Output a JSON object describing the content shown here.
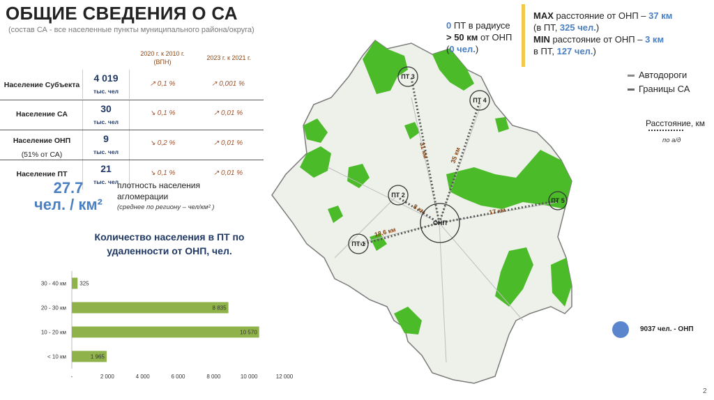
{
  "header": {
    "title": "ОБЩИЕ СВЕДЕНИЯ О СА",
    "subtitle": "(состав СА - все населенные пункты муниципального района/округа)"
  },
  "table": {
    "col1_head_l1": "2020 г. к 2010 г.",
    "col1_head_l2": "(ВПН)",
    "col2_head": "2023 г. к 2021 г.",
    "rows": [
      {
        "label": "Население Субъекта",
        "label2": "",
        "value": "4 019",
        "unit": "тыс. чел",
        "c1": "↗ 0,1 %",
        "c2": "↗ 0,001 %"
      },
      {
        "label": "Население СА",
        "label2": "",
        "value": "30",
        "unit": "тыс. чел",
        "c1": "↘ 0,1 %",
        "c2": "↗ 0,01 %"
      },
      {
        "label": "Население ОНП",
        "label2": "(51% от СА)",
        "value": "9",
        "unit": "тыс. чел",
        "c1": "↘ 0,2 %",
        "c2": "↗ 0,01 %"
      },
      {
        "label": "Население ПТ",
        "label2": "",
        "value": "21",
        "unit": "тыс. чел",
        "c1": "↘ 0,1 %",
        "c2": "↗ 0,01 %"
      }
    ]
  },
  "density": {
    "value": "27.7",
    "unit": "чел. / км²",
    "label_l1": "плотность населения",
    "label_l2": "агломерации",
    "note": "(среднее по региону –      чел/км² )"
  },
  "chart_title_l1": "Количество населения в ПТ по",
  "chart_title_l2": "удаленности от ОНП, чел.",
  "chart_data": {
    "type": "bar",
    "orientation": "horizontal",
    "categories": [
      "30 - 40 км",
      "20 - 30 км",
      "10 - 20 км",
      "< 10 км"
    ],
    "values": [
      325,
      8835,
      10570,
      1965
    ],
    "value_labels": [
      "325",
      "8 835",
      "10 570",
      "1 965"
    ],
    "xlim": [
      0,
      12000
    ],
    "xticks": [
      "-",
      "2 000",
      "4 000",
      "6 000",
      "8 000",
      "10 000",
      "12 000"
    ],
    "bar_color": "#8fb34a"
  },
  "map": {
    "points": [
      {
        "label": "ПТ 3"
      },
      {
        "label": "ПТ 4"
      },
      {
        "label": "ПТ 2"
      },
      {
        "label": "ПТ 5"
      },
      {
        "label": "ПТ 1"
      },
      {
        "label": "ОНП"
      }
    ],
    "distances": [
      "31 км",
      "35 км",
      "8 км",
      "17 км",
      "18,6 км"
    ],
    "forest_color": "#4cbb2a"
  },
  "info_left": {
    "count": "0",
    "l1_rest": " ПТ в радиусе",
    "l2_bold": "> 50 км",
    "l2_rest": " от ОНП",
    "l3_open": "(",
    "l3_blue": "0 чел.",
    "l3_close": ")"
  },
  "info_right": {
    "max_bold": "MAX",
    "max_text": " расстояние от ОНП – ",
    "max_value": "37 км",
    "max_pt_open": "(в ПТ, ",
    "max_people": "325 чел.",
    "max_pt_close": ")",
    "min_bold": "MIN",
    "min_text": " расстояние от ОНП – ",
    "min_value": "3 км",
    "min_pt_open": "в ПТ, ",
    "min_people": "127 чел.",
    "min_pt_close": ")"
  },
  "legend": {
    "roads": "Автодороги",
    "borders": "Границы СА",
    "distance": "Расстояние, км",
    "distance_note": "по а/д"
  },
  "onp_legend": "9037 чел. - ОНП",
  "page_number": "2"
}
